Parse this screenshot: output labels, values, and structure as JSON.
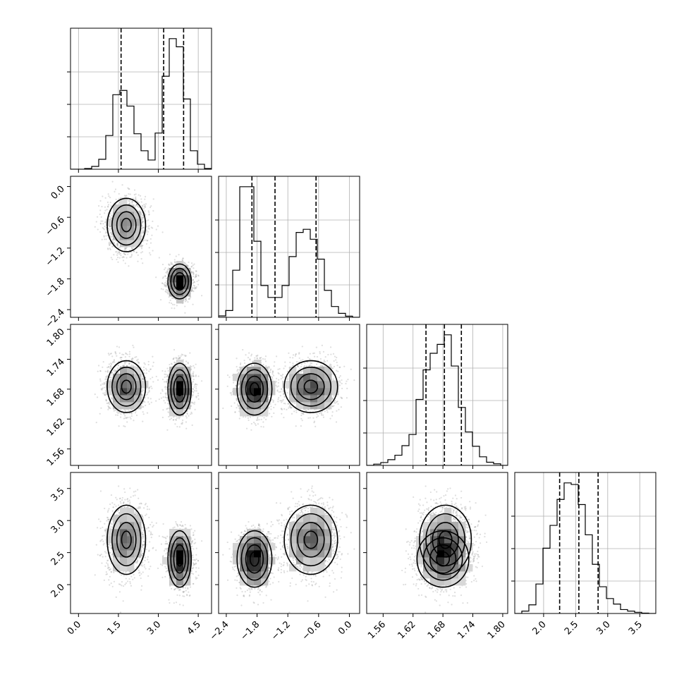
{
  "chart_data": {
    "type": "corner",
    "n_params": 4,
    "grid": true,
    "params": [
      {
        "range": [
          -0.3,
          5.0
        ],
        "ticks": [
          0.0,
          1.5,
          3.0,
          4.5
        ],
        "tick_labels": [
          "0.0",
          "1.5",
          "3.0",
          "4.5"
        ],
        "quantiles": [
          1.6,
          3.2,
          3.95
        ]
      },
      {
        "range": [
          -2.55,
          0.2
        ],
        "ticks": [
          -2.4,
          -1.8,
          -1.2,
          -0.6,
          0.0
        ],
        "tick_labels": [
          "−2.4",
          "−1.8",
          "−1.2",
          "−0.6",
          "0.0"
        ],
        "quantiles": [
          -1.9,
          -1.45,
          -0.65
        ]
      },
      {
        "range": [
          1.527,
          1.81
        ],
        "ticks": [
          1.56,
          1.62,
          1.68,
          1.74,
          1.8
        ],
        "tick_labels": [
          "1.56",
          "1.62",
          "1.68",
          "1.74",
          "1.80"
        ],
        "quantiles": [
          1.646,
          1.683,
          1.717
        ]
      },
      {
        "range": [
          1.55,
          3.75
        ],
        "ticks": [
          2.0,
          2.5,
          3.0,
          3.5
        ],
        "tick_labels": [
          "2.0",
          "2.5",
          "3.0",
          "3.5"
        ],
        "quantiles": [
          2.25,
          2.55,
          2.85
        ]
      }
    ],
    "histograms": [
      {
        "edges_start": -0.3,
        "bin_width": 0.265,
        "counts": [
          0,
          0,
          2,
          8,
          28,
          95,
          210,
          222,
          178,
          100,
          52,
          26,
          102,
          262,
          368,
          345,
          198,
          52,
          14,
          2
        ]
      },
      {
        "edges_start": -2.55,
        "bin_width": 0.1375,
        "counts": [
          5,
          24,
          166,
          460,
          460,
          268,
          112,
          70,
          70,
          112,
          214,
          299,
          310,
          275,
          205,
          95,
          38,
          14,
          4,
          0
        ]
      },
      {
        "edges_start": 1.527,
        "bin_width": 0.01415,
        "counts": [
          0,
          4,
          9,
          18,
          32,
          62,
          97,
          207,
          300,
          352,
          380,
          410,
          312,
          182,
          105,
          60,
          27,
          10,
          5,
          0
        ]
      },
      {
        "edges_start": 1.55,
        "bin_width": 0.11,
        "counts": [
          0,
          6,
          22,
          75,
          166,
          224,
          290,
          332,
          328,
          277,
          200,
          125,
          68,
          38,
          24,
          10,
          6,
          3,
          1,
          0
        ]
      }
    ],
    "modes": [
      {
        "weight": 0.5,
        "mean": [
          1.8,
          -0.75,
          1.685,
          2.7
        ],
        "sd": [
          0.36,
          0.26,
          0.026,
          0.27
        ]
      },
      {
        "weight": 0.5,
        "mean": [
          3.8,
          -1.85,
          1.68,
          2.4
        ],
        "sd": [
          0.22,
          0.17,
          0.026,
          0.22
        ]
      }
    ]
  }
}
